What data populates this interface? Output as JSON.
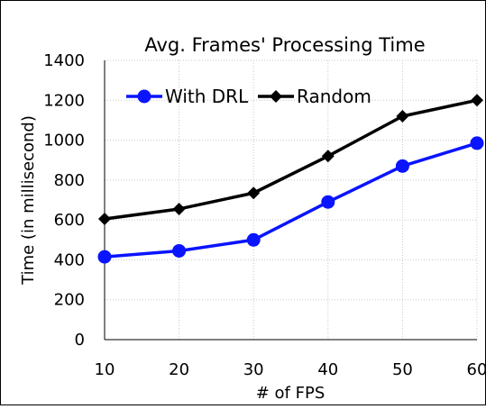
{
  "chart_data": {
    "type": "line",
    "title": "Avg. Frames' Processing Time",
    "xlabel": "# of FPS",
    "ylabel": "Time (in millisecond)",
    "x": [
      10,
      20,
      30,
      40,
      50,
      60
    ],
    "x_tick_labels": [
      "10",
      "20",
      "30",
      "40",
      "50",
      "60"
    ],
    "ylim": [
      0,
      1400
    ],
    "y_ticks": [
      0,
      200,
      400,
      600,
      800,
      1000,
      1200,
      1400
    ],
    "grid": true,
    "legend_position": "top-left",
    "series": [
      {
        "name": "With DRL",
        "values": [
          415,
          445,
          500,
          690,
          870,
          985
        ],
        "color": "#0a14ff",
        "marker": "circle"
      },
      {
        "name": "Random",
        "values": [
          605,
          655,
          735,
          920,
          1120,
          1200
        ],
        "color": "#000000",
        "marker": "diamond"
      }
    ]
  }
}
